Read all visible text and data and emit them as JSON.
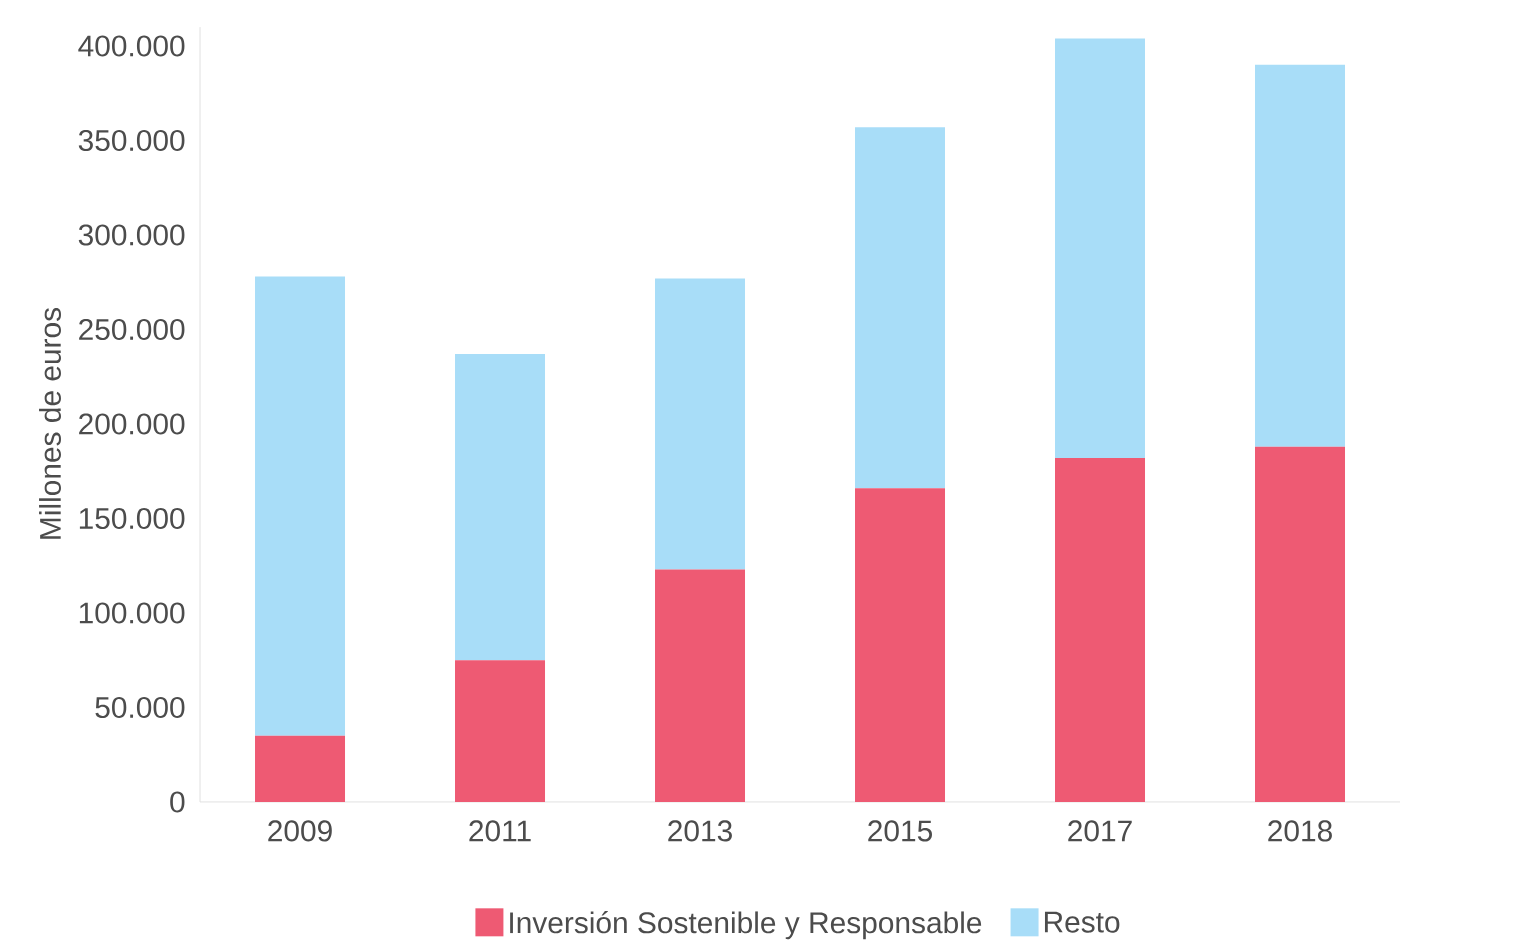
{
  "chart_data": {
    "type": "bar",
    "stacked": true,
    "ylabel": "Millones de euros",
    "categories": [
      "2009",
      "2011",
      "2013",
      "2015",
      "2017",
      "2018"
    ],
    "series": [
      {
        "name": "Inversión Sostenible y Responsable",
        "color": "#ee5a73",
        "values": [
          35000,
          75000,
          123000,
          166000,
          182000,
          188000
        ]
      },
      {
        "name": "Resto",
        "color": "#a8ddf8",
        "values": [
          243000,
          162000,
          154000,
          191000,
          222000,
          202000
        ]
      }
    ],
    "ylim": [
      0,
      410000
    ],
    "yticks": [
      {
        "value": 0,
        "label": "0"
      },
      {
        "value": 50000,
        "label": "50.000"
      },
      {
        "value": 100000,
        "label": "100.000"
      },
      {
        "value": 150000,
        "label": "150.000"
      },
      {
        "value": 200000,
        "label": "200.000"
      },
      {
        "value": 250000,
        "label": "250.000"
      },
      {
        "value": 300000,
        "label": "300.000"
      },
      {
        "value": 350000,
        "label": "350.000"
      },
      {
        "value": 400000,
        "label": "400.000"
      }
    ],
    "grid": false,
    "legend": "bottom"
  }
}
